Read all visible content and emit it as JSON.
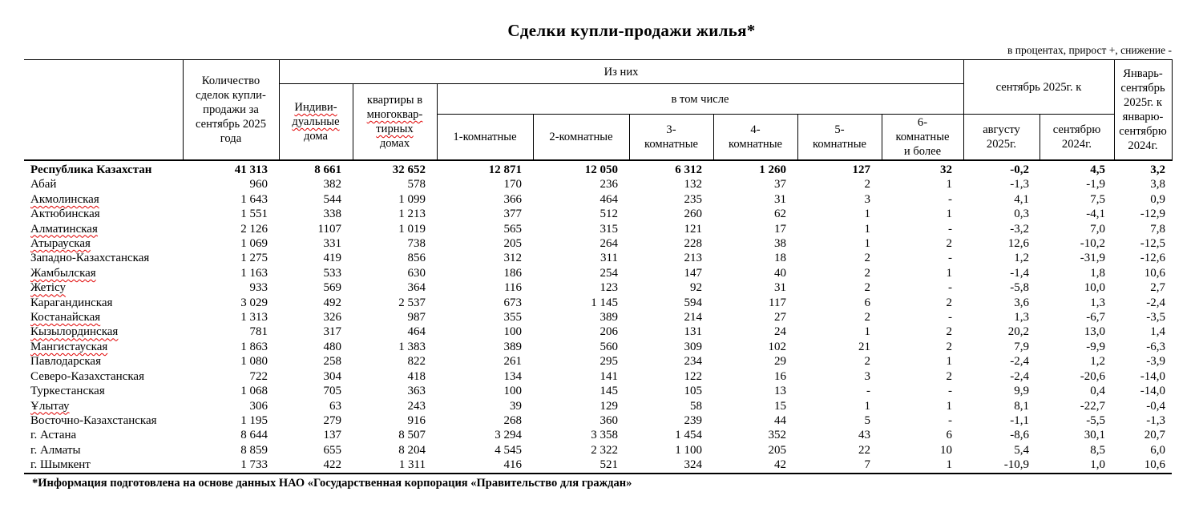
{
  "title": "Сделки купли-продажи жилья*",
  "note": "в процентах, прирост +, снижение -",
  "footer": "*Информация подготовлена на основе данных НАО «Государственная корпорация «Правительство для граждан»",
  "header": {
    "quantity": "Количество\nсделок купли-\nпродажи за\nсентябрь 2025\nгода",
    "of_them": "Из них",
    "including": "в том числе",
    "individual_lines": [
      {
        "text": "Индиви-",
        "sq": true
      },
      {
        "text": "дуальные",
        "sq": true
      },
      {
        "text": "дома",
        "sq": false
      }
    ],
    "apartments_lines": [
      {
        "text": "квартиры в",
        "sq": false
      },
      {
        "text": "многоквар-",
        "sq": true
      },
      {
        "text": "тирных",
        "sq": true
      },
      {
        "text": "домах",
        "sq": false
      }
    ],
    "rooms": [
      "1-комнатные",
      "2-комнатные",
      "3-\nкомнатные",
      "4-\nкомнатные",
      "5-\nкомнатные",
      "6-\nкомнатные\nи более"
    ],
    "sep2025_to": "сентябрь 2025г. к",
    "aug2025": "августу\n2025г.",
    "sep2024": "сентябрю\n2024г.",
    "jan_sep": "Январь-\nсентябрь\n2025г. к\nянварю-\nсентябрю\n2024г."
  },
  "rows": [
    {
      "region": "Республика Казахстан",
      "bold": true,
      "sq": false,
      "values": [
        "41 313",
        "8 661",
        "32 652",
        "12 871",
        "12 050",
        "6 312",
        "1 260",
        "127",
        "32",
        "-0,2",
        "4,5",
        "3,2"
      ]
    },
    {
      "region": "Абай",
      "bold": false,
      "sq": false,
      "values": [
        "960",
        "382",
        "578",
        "170",
        "236",
        "132",
        "37",
        "2",
        "1",
        "-1,3",
        "-1,9",
        "3,8"
      ]
    },
    {
      "region": "Акмолинская",
      "bold": false,
      "sq": true,
      "values": [
        "1 643",
        "544",
        "1 099",
        "366",
        "464",
        "235",
        "31",
        "3",
        "-",
        "4,1",
        "7,5",
        "0,9"
      ]
    },
    {
      "region": "Актюбинская",
      "bold": false,
      "sq": false,
      "values": [
        "1 551",
        "338",
        "1 213",
        "377",
        "512",
        "260",
        "62",
        "1",
        "1",
        "0,3",
        "-4,1",
        "-12,9"
      ]
    },
    {
      "region": "Алматинская",
      "bold": false,
      "sq": true,
      "values": [
        "2 126",
        "1107",
        "1 019",
        "565",
        "315",
        "121",
        "17",
        "1",
        "-",
        "-3,2",
        "7,0",
        "7,8"
      ]
    },
    {
      "region": "Атырауская",
      "bold": false,
      "sq": true,
      "values": [
        "1 069",
        "331",
        "738",
        "205",
        "264",
        "228",
        "38",
        "1",
        "2",
        "12,6",
        "-10,2",
        "-12,5"
      ]
    },
    {
      "region": "Западно-Казахстанская",
      "bold": false,
      "sq": false,
      "values": [
        "1 275",
        "419",
        "856",
        "312",
        "311",
        "213",
        "18",
        "2",
        "-",
        "1,2",
        "-31,9",
        "-12,6"
      ]
    },
    {
      "region": "Жамбылская",
      "bold": false,
      "sq": true,
      "values": [
        "1 163",
        "533",
        "630",
        "186",
        "254",
        "147",
        "40",
        "2",
        "1",
        "-1,4",
        "1,8",
        "10,6"
      ]
    },
    {
      "region": "Жетісу",
      "bold": false,
      "sq": true,
      "values": [
        "933",
        "569",
        "364",
        "116",
        "123",
        "92",
        "31",
        "2",
        "-",
        "-5,8",
        "10,0",
        "2,7"
      ]
    },
    {
      "region": "Карагандинская",
      "bold": false,
      "sq": false,
      "values": [
        "3 029",
        "492",
        "2 537",
        "673",
        "1 145",
        "594",
        "117",
        "6",
        "2",
        "3,6",
        "1,3",
        "-2,4"
      ]
    },
    {
      "region": "Костанайская",
      "bold": false,
      "sq": true,
      "values": [
        "1 313",
        "326",
        "987",
        "355",
        "389",
        "214",
        "27",
        "2",
        "-",
        "1,3",
        "-6,7",
        "-3,5"
      ]
    },
    {
      "region": "Кызылординская",
      "bold": false,
      "sq": true,
      "values": [
        "781",
        "317",
        "464",
        "100",
        "206",
        "131",
        "24",
        "1",
        "2",
        "20,2",
        "13,0",
        "1,4"
      ]
    },
    {
      "region": "Мангистауская",
      "bold": false,
      "sq": true,
      "values": [
        "1 863",
        "480",
        "1 383",
        "389",
        "560",
        "309",
        "102",
        "21",
        "2",
        "7,9",
        "-9,9",
        "-6,3"
      ]
    },
    {
      "region": "Павлодарская",
      "bold": false,
      "sq": false,
      "values": [
        "1 080",
        "258",
        "822",
        "261",
        "295",
        "234",
        "29",
        "2",
        "1",
        "-2,4",
        "1,2",
        "-3,9"
      ]
    },
    {
      "region": "Северо-Казахстанская",
      "bold": false,
      "sq": false,
      "values": [
        "722",
        "304",
        "418",
        "134",
        "141",
        "122",
        "16",
        "3",
        "2",
        "-2,4",
        "-20,6",
        "-14,0"
      ]
    },
    {
      "region": "Туркестанская",
      "bold": false,
      "sq": false,
      "values": [
        "1 068",
        "705",
        "363",
        "100",
        "145",
        "105",
        "13",
        "-",
        "-",
        "9,9",
        "0,4",
        "-14,0"
      ]
    },
    {
      "region": "Ұлытау",
      "bold": false,
      "sq": true,
      "values": [
        "306",
        "63",
        "243",
        "39",
        "129",
        "58",
        "15",
        "1",
        "1",
        "8,1",
        "-22,7",
        "-0,4"
      ]
    },
    {
      "region": "Восточно-Казахстанская",
      "bold": false,
      "sq": false,
      "values": [
        "1 195",
        "279",
        "916",
        "268",
        "360",
        "239",
        "44",
        "5",
        "-",
        "-1,1",
        "-5,5",
        "-1,3"
      ]
    },
    {
      "region": "г. Астана",
      "bold": false,
      "sq": false,
      "values": [
        "8 644",
        "137",
        "8 507",
        "3 294",
        "3 358",
        "1 454",
        "352",
        "43",
        "6",
        "-8,6",
        "30,1",
        "20,7"
      ]
    },
    {
      "region": "г. Алматы",
      "bold": false,
      "sq": false,
      "values": [
        "8 859",
        "655",
        "8 204",
        "4 545",
        "2 322",
        "1 100",
        "205",
        "22",
        "10",
        "5,4",
        "8,5",
        "6,0"
      ]
    },
    {
      "region": "г. Шымкент",
      "bold": false,
      "sq": false,
      "values": [
        "1 733",
        "422",
        "1 311",
        "416",
        "521",
        "324",
        "42",
        "7",
        "1",
        "-10,9",
        "1,0",
        "10,6"
      ]
    }
  ]
}
